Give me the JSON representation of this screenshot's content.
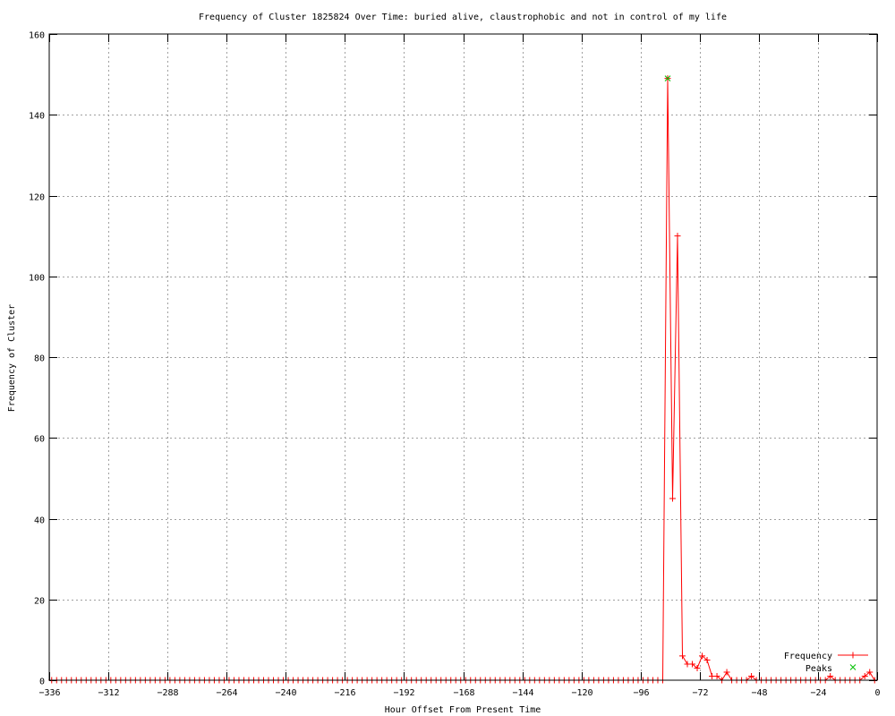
{
  "chart_data": {
    "type": "line",
    "title": "Frequency of Cluster 1825824 Over Time: buried alive, claustrophobic and not in control of my life",
    "xlabel": "Hour Offset From Present Time",
    "ylabel": "Frequency of Cluster",
    "xlim": [
      -336,
      0
    ],
    "ylim": [
      0,
      160
    ],
    "xticks": [
      -336,
      -312,
      -288,
      -264,
      -240,
      -216,
      -192,
      -168,
      -144,
      -120,
      -96,
      -72,
      -48,
      -24,
      0
    ],
    "yticks": [
      0,
      20,
      40,
      60,
      80,
      100,
      120,
      140,
      160
    ],
    "grid": true,
    "legend_position": "bottom-right",
    "series": [
      {
        "name": "Frequency",
        "color": "#ff0000",
        "marker": "plus",
        "x": [
          -335,
          -333,
          -331,
          -329,
          -327,
          -325,
          -323,
          -321,
          -319,
          -317,
          -315,
          -313,
          -311,
          -309,
          -307,
          -305,
          -303,
          -301,
          -299,
          -297,
          -295,
          -293,
          -291,
          -289,
          -287,
          -285,
          -283,
          -281,
          -279,
          -277,
          -275,
          -273,
          -271,
          -269,
          -267,
          -265,
          -263,
          -261,
          -259,
          -257,
          -255,
          -253,
          -251,
          -249,
          -247,
          -245,
          -243,
          -241,
          -239,
          -237,
          -235,
          -233,
          -231,
          -229,
          -227,
          -225,
          -223,
          -221,
          -219,
          -217,
          -215,
          -213,
          -211,
          -209,
          -207,
          -205,
          -203,
          -201,
          -199,
          -197,
          -195,
          -193,
          -191,
          -189,
          -187,
          -185,
          -183,
          -181,
          -179,
          -177,
          -175,
          -173,
          -171,
          -169,
          -167,
          -165,
          -163,
          -161,
          -159,
          -157,
          -155,
          -153,
          -151,
          -149,
          -147,
          -145,
          -143,
          -141,
          -139,
          -137,
          -135,
          -133,
          -131,
          -129,
          -127,
          -125,
          -123,
          -121,
          -119,
          -117,
          -115,
          -113,
          -111,
          -109,
          -107,
          -105,
          -103,
          -101,
          -99,
          -97,
          -95,
          -93,
          -91,
          -89,
          -87,
          -85,
          -83,
          -81,
          -79,
          -77,
          -75,
          -73,
          -71,
          -69,
          -67,
          -65,
          -63,
          -61,
          -59,
          -57,
          -55,
          -53,
          -51,
          -49,
          -47,
          -45,
          -43,
          -41,
          -39,
          -37,
          -35,
          -33,
          -31,
          -29,
          -27,
          -25,
          -23,
          -21,
          -19,
          -17,
          -15,
          -13,
          -11,
          -9,
          -7,
          -5,
          -3,
          -1
        ],
        "y": [
          0,
          0,
          0,
          0,
          0,
          0,
          0,
          0,
          0,
          0,
          0,
          0,
          0,
          0,
          0,
          0,
          0,
          0,
          0,
          0,
          0,
          0,
          0,
          0,
          0,
          0,
          0,
          0,
          0,
          0,
          0,
          0,
          0,
          0,
          0,
          0,
          0,
          0,
          0,
          0,
          0,
          0,
          0,
          0,
          0,
          0,
          0,
          0,
          0,
          0,
          0,
          0,
          0,
          0,
          0,
          0,
          0,
          0,
          0,
          0,
          0,
          0,
          0,
          0,
          0,
          0,
          0,
          0,
          0,
          0,
          0,
          0,
          0,
          0,
          0,
          0,
          0,
          0,
          0,
          0,
          0,
          0,
          0,
          0,
          0,
          0,
          0,
          0,
          0,
          0,
          0,
          0,
          0,
          0,
          0,
          0,
          0,
          0,
          0,
          0,
          0,
          0,
          0,
          0,
          0,
          0,
          0,
          0,
          0,
          0,
          0,
          0,
          0,
          0,
          0,
          0,
          0,
          0,
          0,
          0,
          0,
          0,
          0,
          0,
          0,
          149,
          45,
          110,
          6,
          4,
          4,
          3,
          6,
          5,
          1,
          1,
          0,
          2,
          0,
          0,
          0,
          0,
          1,
          0,
          0,
          0,
          0,
          0,
          0,
          0,
          0,
          0,
          0,
          0,
          0,
          0,
          0,
          0,
          1,
          0,
          0,
          0,
          0,
          0,
          0,
          1,
          2,
          0
        ]
      },
      {
        "name": "Peaks",
        "color": "#00c000",
        "marker": "cross",
        "x": [
          -85
        ],
        "y": [
          149
        ]
      }
    ]
  }
}
